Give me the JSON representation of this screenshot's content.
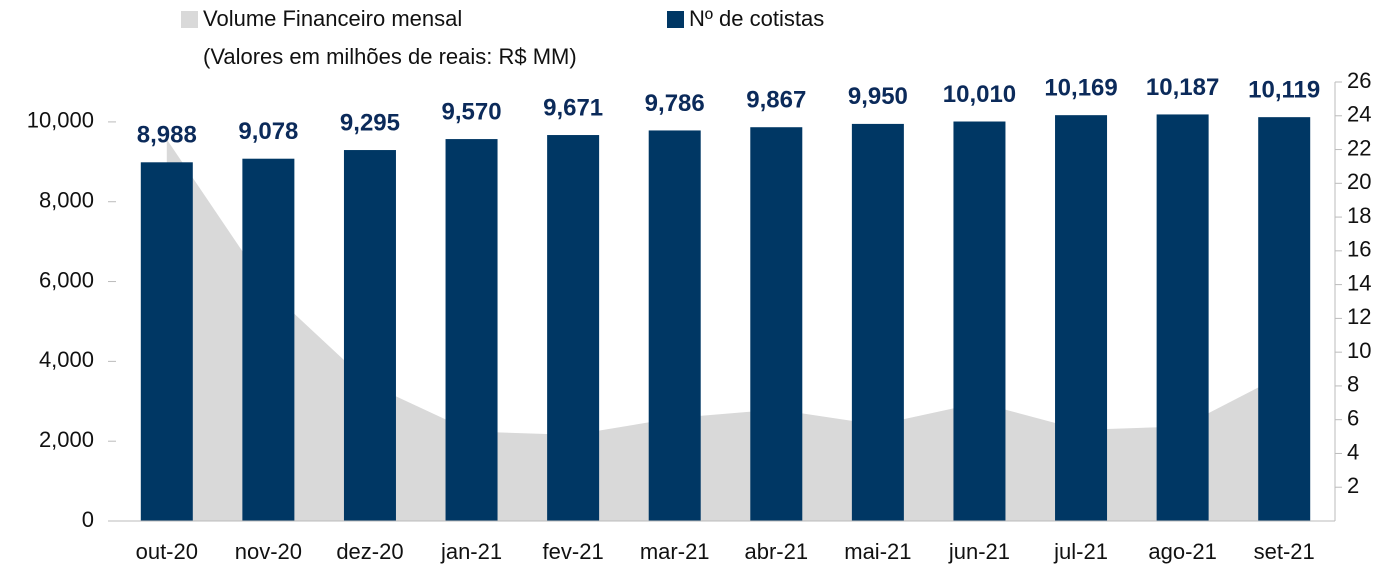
{
  "chart_data": {
    "type": "bar",
    "categories": [
      "out-20",
      "nov-20",
      "dez-20",
      "jan-21",
      "fev-21",
      "mar-21",
      "abr-21",
      "mai-21",
      "jun-21",
      "jul-21",
      "ago-21",
      "set-21"
    ],
    "series": [
      {
        "name": "Volume Financeiro mensal",
        "type": "area",
        "axis": "y2",
        "color": "#d9d9d9",
        "values": [
          22.6,
          13.7,
          8.1,
          5.3,
          5.1,
          6.1,
          6.6,
          5.7,
          7.0,
          5.4,
          5.6,
          8.7
        ]
      },
      {
        "name": "Nº de cotistas",
        "type": "bar",
        "color": "#003764",
        "values": [
          8988,
          9078,
          9295,
          9570,
          9671,
          9786,
          9867,
          9950,
          10010,
          10169,
          10187,
          10119
        ],
        "value_labels": [
          "8,988",
          "9,078",
          "9,295",
          "9,570",
          "9,671",
          "9,786",
          "9,867",
          "9,950",
          "10,010",
          "10,169",
          "10,187",
          "10,119"
        ]
      }
    ],
    "legend_note": "(Valores em milhões de reais: R$ MM)",
    "ylim": [
      0,
      11000
    ],
    "yticks": [
      0,
      {
        "value": 2000,
        "label": "2,000"
      },
      {
        "value": 4000,
        "label": "4,000"
      },
      {
        "value": 6000,
        "label": "6,000"
      },
      {
        "value": 8000,
        "label": "8,000"
      },
      {
        "value": 10000,
        "label": "10,000"
      }
    ],
    "y2lim": [
      0,
      26
    ],
    "y2ticks": [
      2,
      4,
      6,
      8,
      10,
      12,
      14,
      16,
      18,
      20,
      22,
      24,
      26
    ]
  }
}
